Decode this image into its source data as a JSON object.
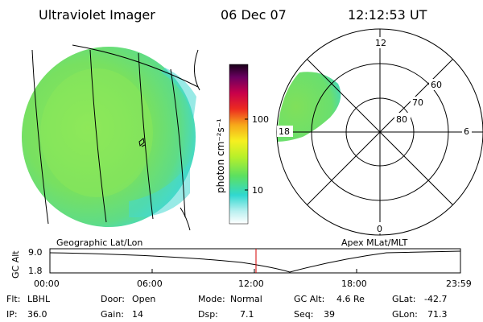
{
  "header": {
    "title": "Ultraviolet Imager",
    "date": "06 Dec 07",
    "time": "12:12:53 UT"
  },
  "colorbar": {
    "unit_label": "photon cm⁻²s⁻¹",
    "ticks": [
      "100",
      "10"
    ]
  },
  "polar_plot": {
    "mlt_labels": [
      "12",
      "18",
      "6",
      "0"
    ],
    "lat_labels": [
      "60",
      "70",
      "80"
    ]
  },
  "panels": {
    "left_caption": "Geographic Lat/Lon",
    "right_caption": "Apex MLat/MLT"
  },
  "altitude_plot": {
    "ylabel": "GC Alt",
    "yticks": [
      "9.0",
      "1.8"
    ],
    "xticks": [
      "00:00",
      "06:00",
      "12:00",
      "18:00",
      "23:59"
    ]
  },
  "status": {
    "row1": [
      {
        "label": "Flt:",
        "value": "LBHL"
      },
      {
        "label": "Door:",
        "value": "Open"
      },
      {
        "label": "Mode:",
        "value": "Normal"
      },
      {
        "label": "GC Alt:",
        "value": "4.6 Re"
      },
      {
        "label": "GLat:",
        "value": "-42.7"
      }
    ],
    "row2": [
      {
        "label": "IP:",
        "value": "36.0"
      },
      {
        "label": "Gain:",
        "value": "14"
      },
      {
        "label": "Dsp:",
        "value": "7.1"
      },
      {
        "label": "Seq:",
        "value": "39"
      },
      {
        "label": "GLon:",
        "value": "71.3"
      }
    ]
  },
  "colors": {
    "disk_fill": "#7ee85a",
    "disk_edge": "#3fd7d0",
    "marker_line": "#d40000"
  }
}
